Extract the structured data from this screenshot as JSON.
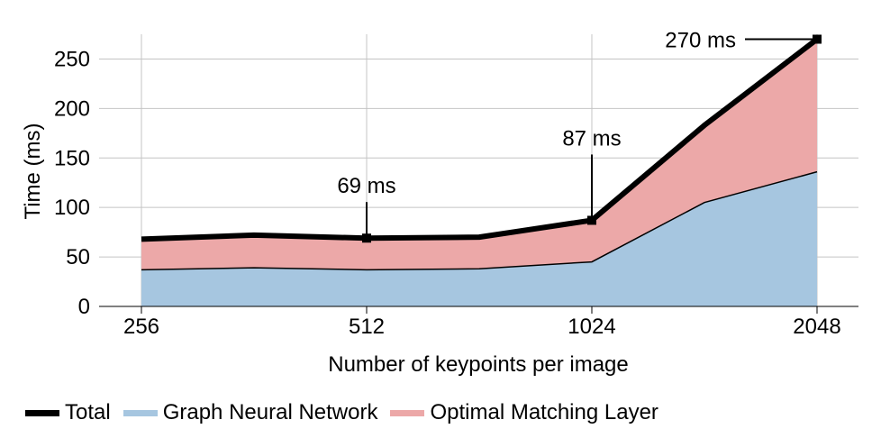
{
  "chart_data": {
    "type": "area",
    "x": [
      256,
      362,
      512,
      724,
      1024,
      1448,
      2048
    ],
    "x_ticks": [
      "256",
      "512",
      "1024",
      "2048"
    ],
    "y_ticks": [
      "0",
      "50",
      "100",
      "150",
      "200",
      "250"
    ],
    "xlabel": "Number of keypoints per image",
    "ylabel": "Time (ms)",
    "ylim": [
      0,
      275
    ],
    "grid": true,
    "legend_position": "bottom",
    "series": [
      {
        "name": "Total",
        "kind": "line",
        "color": "#000000",
        "values": [
          68,
          72,
          69,
          70,
          87,
          183,
          270
        ]
      },
      {
        "name": "Graph Neural Network",
        "kind": "area",
        "color": "#a6c6e0",
        "values": [
          37,
          39,
          37,
          38,
          45,
          105,
          136
        ]
      },
      {
        "name": "Optimal Matching Layer",
        "kind": "area",
        "color": "#eca8a8",
        "values": [
          31,
          33,
          32,
          32,
          42,
          78,
          134
        ]
      }
    ],
    "annotations": [
      {
        "text": "69 ms",
        "x": 512,
        "y": 69
      },
      {
        "text": "87 ms",
        "x": 1024,
        "y": 87
      },
      {
        "text": "270 ms",
        "x": 2048,
        "y": 270
      }
    ]
  }
}
